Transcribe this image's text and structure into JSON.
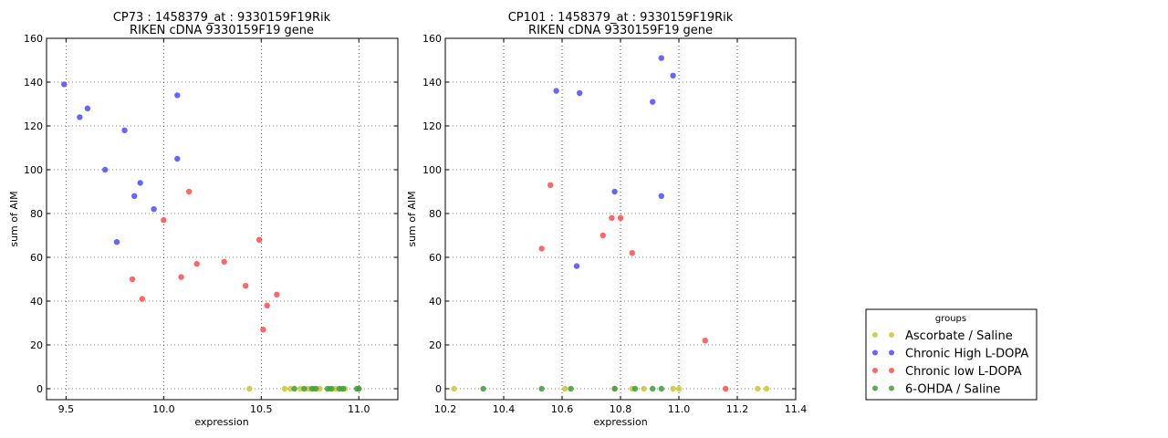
{
  "chart_data": [
    {
      "type": "scatter",
      "title": "CP73 : 1458379_at : 9330159F19Rik",
      "subtitle": "RIKEN cDNA 9330159F19 gene",
      "xlabel": "expression",
      "ylabel": "sum of AIM",
      "xlim": [
        9.4,
        11.2
      ],
      "ylim": [
        -5,
        160
      ],
      "xticks": [
        "9.5",
        "10.0",
        "10.5",
        "11.0"
      ],
      "yticks": [
        "0",
        "20",
        "40",
        "60",
        "80",
        "100",
        "120",
        "140",
        "160"
      ],
      "grid": true,
      "series": [
        {
          "name": "Ascorbate / Saline",
          "x": [
            10.44,
            10.62,
            10.65,
            10.7,
            10.74,
            10.77,
            10.8,
            10.85,
            10.88,
            10.91,
            10.93,
            11.0
          ],
          "y": [
            0,
            0,
            0,
            0,
            0,
            0,
            0,
            0,
            0,
            0,
            0,
            0
          ]
        },
        {
          "name": "Chronic High L-DOPA",
          "x": [
            9.49,
            9.57,
            9.61,
            9.7,
            9.76,
            9.8,
            9.85,
            9.88,
            9.95,
            10.07,
            10.07
          ],
          "y": [
            139,
            124,
            128,
            100,
            67,
            118,
            88,
            94,
            82,
            134,
            105
          ]
        },
        {
          "name": "Chronic low L-DOPA",
          "x": [
            9.84,
            9.89,
            10.0,
            10.09,
            10.13,
            10.17,
            10.31,
            10.42,
            10.49,
            10.51,
            10.53,
            10.58
          ],
          "y": [
            50,
            41,
            77,
            51,
            90,
            57,
            58,
            47,
            68,
            27,
            38,
            43
          ]
        },
        {
          "name": "6-OHDA / Saline",
          "x": [
            10.67,
            10.72,
            10.76,
            10.78,
            10.84,
            10.86,
            10.9,
            10.92,
            10.99,
            11.0
          ],
          "y": [
            0,
            0,
            0,
            0,
            0,
            0,
            0,
            0,
            0,
            0
          ]
        }
      ]
    },
    {
      "type": "scatter",
      "title": "CP101 : 1458379_at : 9330159F19Rik",
      "subtitle": "RIKEN cDNA 9330159F19 gene",
      "xlabel": "expression",
      "ylabel": "sum of AIM",
      "xlim": [
        10.2,
        11.4
      ],
      "ylim": [
        -5,
        160
      ],
      "xticks": [
        "10.2",
        "10.4",
        "10.6",
        "10.8",
        "11.0",
        "11.2",
        "11.4"
      ],
      "yticks": [
        "0",
        "20",
        "40",
        "60",
        "80",
        "100",
        "120",
        "140",
        "160"
      ],
      "grid": true,
      "series": [
        {
          "name": "Ascorbate / Saline",
          "x": [
            10.23,
            10.61,
            10.78,
            10.84,
            10.88,
            10.98,
            11.0,
            11.27,
            11.3
          ],
          "y": [
            0,
            0,
            0,
            0,
            0,
            0,
            0,
            0,
            0
          ]
        },
        {
          "name": "Chronic High L-DOPA",
          "x": [
            10.58,
            10.65,
            10.66,
            10.78,
            10.91,
            10.94,
            10.94,
            10.98
          ],
          "y": [
            136,
            56,
            135,
            90,
            131,
            88,
            151,
            143
          ]
        },
        {
          "name": "Chronic low L-DOPA",
          "x": [
            10.53,
            10.56,
            10.74,
            10.77,
            10.8,
            10.84,
            11.09,
            11.16
          ],
          "y": [
            64,
            93,
            70,
            78,
            78,
            62,
            22,
            0
          ]
        },
        {
          "name": "6-OHDA / Saline",
          "x": [
            10.33,
            10.53,
            10.63,
            10.78,
            10.85,
            10.91,
            10.94
          ],
          "y": [
            0,
            0,
            0,
            0,
            0,
            0,
            0
          ]
        }
      ]
    }
  ],
  "legend": {
    "title": "groups",
    "placement": "lower-right, outside plots",
    "entries": [
      {
        "label": "Ascorbate / Saline",
        "color": "#c8c832"
      },
      {
        "label": "Chronic High L-DOPA",
        "color": "#4b4bff"
      },
      {
        "label": "Chronic low L-DOPA",
        "color": "#ff4b4b"
      },
      {
        "label": "6-OHDA / Saline",
        "color": "#3c9f3c"
      }
    ]
  },
  "colors": {
    "Ascorbate / Saline": "#c8c832",
    "Chronic High L-DOPA": "#4b4bff",
    "Chronic low L-DOPA": "#ff4b4b",
    "6-OHDA / Saline": "#3c9f3c"
  }
}
